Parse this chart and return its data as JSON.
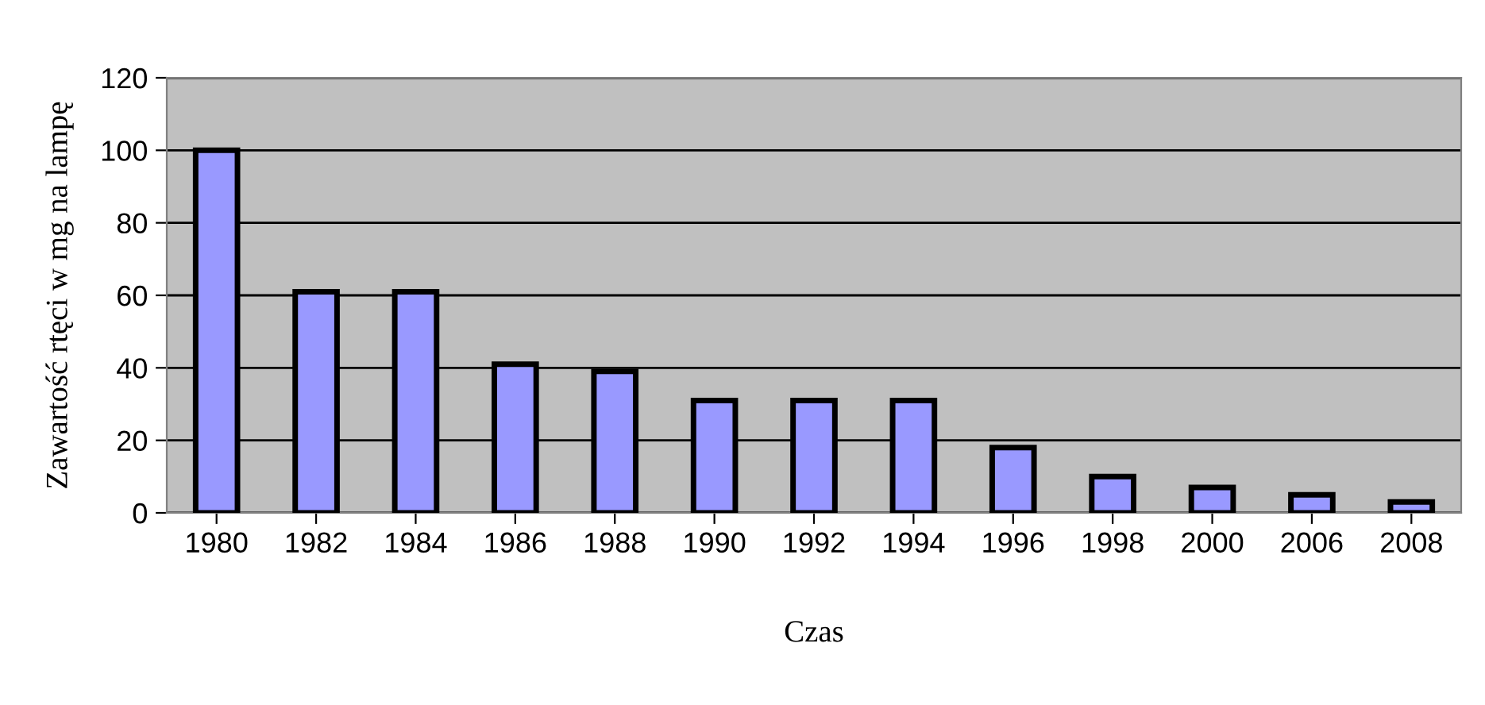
{
  "chart_data": {
    "type": "bar",
    "xlabel": "Czas",
    "ylabel": "Zawartość rtęci w mg na lampę",
    "categories": [
      "1980",
      "1982",
      "1984",
      "1986",
      "1988",
      "1990",
      "1992",
      "1994",
      "1996",
      "1998",
      "2000",
      "2006",
      "2008"
    ],
    "values": [
      100,
      61,
      61,
      41,
      39,
      31,
      31,
      31,
      18,
      10,
      7,
      5,
      3
    ],
    "color": "#9999ff",
    "ylim": [
      0,
      120
    ],
    "yticks": [
      0,
      20,
      40,
      60,
      80,
      100,
      120
    ],
    "grid": "y",
    "legend": false
  }
}
